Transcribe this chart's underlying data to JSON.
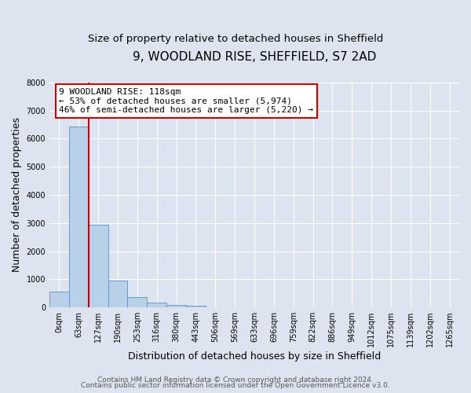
{
  "title": "9, WOODLAND RISE, SHEFFIELD, S7 2AD",
  "subtitle": "Size of property relative to detached houses in Sheffield",
  "bar_labels": [
    "0sqm",
    "63sqm",
    "127sqm",
    "190sqm",
    "253sqm",
    "316sqm",
    "380sqm",
    "443sqm",
    "506sqm",
    "569sqm",
    "633sqm",
    "696sqm",
    "759sqm",
    "822sqm",
    "886sqm",
    "949sqm",
    "1012sqm",
    "1075sqm",
    "1139sqm",
    "1202sqm",
    "1265sqm"
  ],
  "bar_values": [
    560,
    6420,
    2940,
    960,
    375,
    160,
    100,
    55,
    0,
    0,
    0,
    0,
    0,
    0,
    0,
    0,
    0,
    0,
    0,
    0,
    0
  ],
  "bar_color": "#b8d0e8",
  "bar_edge_color": "#6090c0",
  "vline_x": 2,
  "vline_color": "#cc0000",
  "ylim": [
    0,
    8000
  ],
  "yticks": [
    0,
    1000,
    2000,
    3000,
    4000,
    5000,
    6000,
    7000,
    8000
  ],
  "ylabel": "Number of detached properties",
  "xlabel": "Distribution of detached houses by size in Sheffield",
  "annotation_title": "9 WOODLAND RISE: 118sqm",
  "annotation_line1": "← 53% of detached houses are smaller (5,974)",
  "annotation_line2": "46% of semi-detached houses are larger (5,220) →",
  "annotation_box_facecolor": "#ffffff",
  "annotation_box_edgecolor": "#cc0000",
  "footer_line1": "Contains HM Land Registry data © Crown copyright and database right 2024.",
  "footer_line2": "Contains public sector information licensed under the Open Government Licence v3.0.",
  "bg_color": "#dde4f0",
  "plot_bg_color": "#dde4f0",
  "title_fontsize": 11,
  "subtitle_fontsize": 9.5,
  "ylabel_fontsize": 9,
  "xlabel_fontsize": 9,
  "tick_label_fontsize": 7,
  "annotation_fontsize": 8,
  "footer_fontsize": 6.5
}
